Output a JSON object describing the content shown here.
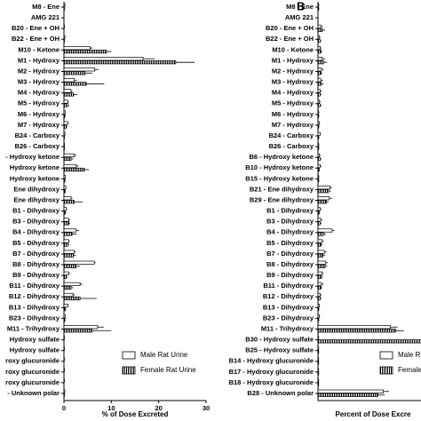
{
  "chart_data": [
    {
      "type": "hbar_grouped",
      "xlabel": "% of Dose Excreted",
      "categories": [
        "M8 - Ene",
        "AMG 221",
        "B20 - Ene + OH",
        "B22 - Ene + OH",
        "M10 - Ketone",
        "M1 - Hydroxy",
        "M2 - Hydroxy",
        "M3 - Hydroxy",
        "M4 - Hydroxy",
        "M5 - Hydroxy",
        "M6 - Hydroxy",
        "M7 - Hydroxy",
        "B24 - Carboxy",
        "B26 - Carboxy",
        "- Hydroxy ketone",
        "Hydroxy ketone",
        "Hydroxy ketone",
        "Ene dihydroxy",
        "Ene dihydroxy",
        "B1 - Dihydroxy",
        "B3 - Dihydroxy",
        "B4 - Dihydroxy",
        "B5 - Dihydroxy",
        "B7 - Dihydroxy",
        "B8 - Dihydroxy",
        "B9 - Dihydroxy",
        "B11 - Dihydroxy",
        "B12 - Dihydroxy",
        "B13 - Dihydroxy",
        "B23 - Dihydroxy",
        "M11 - Trihydroxy",
        "Hydroxy sulfate",
        "Hydroxy sulfate",
        "roxy glucuronide",
        "roxy glucuronide",
        "roxy glucuronide",
        "- Unknown polar"
      ],
      "series": [
        {
          "name": "Male Rat Urine",
          "color": "#ffffff",
          "values": [
            0.2,
            0,
            0.1,
            0.2,
            5.5,
            16.7,
            6.5,
            2.2,
            1.5,
            0.8,
            0.3,
            0.8,
            0.2,
            0.1,
            2.2,
            2.6,
            0.3,
            0.4,
            1.5,
            0.5,
            1.0,
            2.6,
            1.0,
            2.2,
            6.4,
            1.0,
            3.4,
            1.9,
            0.8,
            0.3,
            7.1,
            0.1,
            0.1,
            0.1,
            0.1,
            0.1,
            0.2
          ],
          "errors": [
            0.1,
            0,
            0.1,
            0.1,
            0.5,
            2.5,
            0.8,
            0.5,
            0.3,
            0.2,
            0.1,
            0.2,
            0.1,
            0.1,
            0.4,
            0.5,
            0.1,
            0.1,
            0.3,
            0.2,
            0.3,
            0.6,
            0.2,
            0.3,
            0.3,
            0.2,
            0.5,
            0.4,
            0.2,
            0.1,
            1.3,
            0,
            0,
            0,
            0,
            0,
            0.1
          ]
        },
        {
          "name": "Female Rat Urine",
          "color": "#000000",
          "values": [
            0.1,
            0,
            0,
            0.1,
            9.0,
            23.6,
            4.5,
            4.7,
            2.0,
            0.8,
            0.2,
            0.5,
            0.1,
            0.1,
            1.5,
            4.3,
            0.2,
            0.3,
            2.2,
            0.3,
            1.0,
            1.7,
            0.8,
            2.0,
            2.6,
            0.5,
            1.5,
            3.4,
            0.3,
            0.2,
            6.0,
            0,
            0,
            0,
            0,
            0,
            0.1
          ],
          "errors": [
            0.1,
            0,
            0,
            0.1,
            1.0,
            4.0,
            1.5,
            3.8,
            0.8,
            0.3,
            0.1,
            0.3,
            0.1,
            0.1,
            0.5,
            1.0,
            0.1,
            0.1,
            1.8,
            0.2,
            0.3,
            1.0,
            0.3,
            0.5,
            0.8,
            0.3,
            0.5,
            3.5,
            0.2,
            0.1,
            4.0,
            0,
            0,
            0,
            0,
            0,
            0.1
          ]
        }
      ],
      "xlim": [
        0,
        30
      ],
      "xticks": [
        0,
        10,
        20,
        30
      ]
    },
    {
      "type": "hbar_grouped",
      "panel_label": "B",
      "xlabel": "Percent of Dose Excre",
      "categories": [
        "M8 - Ene",
        "AMG 221",
        "B20 - Ene + OH",
        "B22 - Ene + OH",
        "M10 - Ketone",
        "M1 - Hydroxy",
        "M2 - Hydroxy",
        "M3 - Hydroxy",
        "M4 - Hydroxy",
        "M5 - Hydroxy",
        "M6 - Hydroxy",
        "M7 - Hydroxy",
        "B24 - Carboxy",
        "B26 - Carboxy",
        "B6 - Hydroxy ketone",
        "B10 - Hydroxy ketone",
        "B15 - Hydroxy ketone",
        "B21 - Ene dihydroxy",
        "B29 - Ene dihydroxy",
        "B1 - Dihydroxy",
        "B3 - Dihydroxy",
        "B4 - Dihydroxy",
        "B5 - Dihydroxy",
        "B7 - Dihydroxy",
        "B8 - Dihydroxy",
        "B9 - Dihydroxy",
        "B11 - Dihydroxy",
        "B12 - Dihydroxy",
        "B13 - Dihydroxy",
        "B23 - Dihydroxy",
        "M11 - Trihydroxy",
        "B30 - Hydroxy sulfate",
        "B25 - Hydroxy sulfate",
        "B14 - Hydroxy glucuronide",
        "B17 - Hydroxy glucuronide",
        "B18 - Hydroxy glucuronide",
        "B28 - Unknown polar"
      ],
      "series": [
        {
          "name": "Male R",
          "color": "#ffffff",
          "values": [
            0.1,
            0,
            0.4,
            0.2,
            0.3,
            0.6,
            0.5,
            0.4,
            0.3,
            0.2,
            0.1,
            0.2,
            0.3,
            0.1,
            0.2,
            0.3,
            0.1,
            1.7,
            1.6,
            0.3,
            0.4,
            2.0,
            0.6,
            0.9,
            1.1,
            0.6,
            0.5,
            0.3,
            0.2,
            0.2,
            10.2,
            0.1,
            0.1,
            0.1,
            0.1,
            0.1,
            9.2
          ],
          "errors": [
            0.1,
            0,
            0.3,
            0.2,
            0.2,
            0.4,
            0.3,
            0.3,
            0.2,
            0.2,
            0.1,
            0.1,
            0.1,
            0.1,
            0.2,
            0.2,
            0.1,
            0.3,
            0.4,
            0.2,
            0.2,
            0.3,
            0.2,
            0.3,
            0.3,
            0.2,
            0.3,
            0.2,
            0.1,
            0.1,
            1.0,
            0,
            0,
            0,
            0,
            0,
            0.8
          ]
        },
        {
          "name": "Female",
          "color": "#000000",
          "values": [
            0.1,
            0,
            0.6,
            0.3,
            0.4,
            0.8,
            0.4,
            0.5,
            0.3,
            0.3,
            0.1,
            0.1,
            0.1,
            0.1,
            0.3,
            0.2,
            0.1,
            1.5,
            1.2,
            0.2,
            0.3,
            0.8,
            0.4,
            0.7,
            1.0,
            0.5,
            0.4,
            0.3,
            0.1,
            0.1,
            10.9,
            16,
            0.1,
            0.1,
            0.1,
            0.1,
            8.4
          ],
          "errors": [
            0.1,
            0,
            0.4,
            0.2,
            0.2,
            0.5,
            0.2,
            0.3,
            0.2,
            0.2,
            0.1,
            0.1,
            0.1,
            0.1,
            0.2,
            0.1,
            0.1,
            0.3,
            0.3,
            0.1,
            0.2,
            0.3,
            0.2,
            0.3,
            0.3,
            0.2,
            0.2,
            0.2,
            0.1,
            0.1,
            1.2,
            0,
            0,
            0,
            0,
            0,
            1.0
          ]
        }
      ],
      "xlim": [
        0,
        20
      ]
    }
  ]
}
